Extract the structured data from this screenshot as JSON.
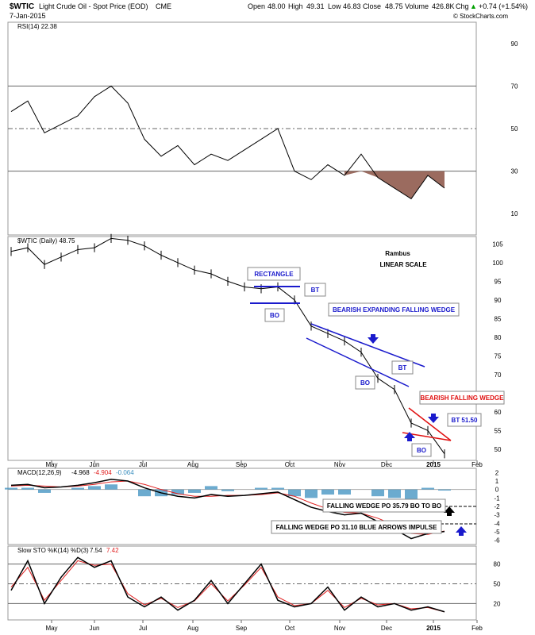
{
  "header": {
    "symbol": "$WTIC",
    "name": "Light Crude Oil - Spot Price (EOD)",
    "exchange": "CME",
    "date": "7-Jan-2015",
    "open_label": "Open",
    "open": "48.00",
    "high_label": "High",
    "high": "49.31",
    "low_label": "Low",
    "low": "46.83",
    "close_label": "Close",
    "close": "48.75",
    "volume_label": "Volume",
    "volume": "426.8K",
    "chg_label": "Chg",
    "chg": "+0.74 (+1.54%)",
    "watermark": "© StockCharts.com",
    "up_arrow_color": "#00a000"
  },
  "rsi_panel": {
    "legend": "RSI(14) 22.38",
    "y_ticks": [
      "90",
      "70",
      "50",
      "30",
      "10"
    ],
    "fill_color": "#9b6b5f"
  },
  "price_panel": {
    "legend": "$WTIC (Daily) 48.75",
    "note_author": "Rambus",
    "note_scale": "LINEAR SCALE",
    "y_ticks": [
      "105",
      "100",
      "95",
      "90",
      "85",
      "80",
      "75",
      "70",
      "65",
      "60",
      "55",
      "50"
    ],
    "x_ticks": [
      "May",
      "Jun",
      "Jul",
      "Aug",
      "Sep",
      "Oct",
      "Nov",
      "Dec",
      "2015",
      "Feb"
    ],
    "annotations": {
      "rectangle": "RECTANGLE",
      "bt1": "BT",
      "bo1": "BO",
      "expanding_wedge": "BEARISH EXPANDING FALLING WEDGE",
      "bt2": "BT",
      "bo2": "BO",
      "falling_wedge": "BEARISH FALLING WEDGE",
      "bt3": "BT 51.50",
      "bo3": "BO"
    },
    "blue_color": "#1a1acc",
    "red_color": "#e01010"
  },
  "macd_panel": {
    "legend_name": "MACD(12,26,9)",
    "legend_macd": "-4.968",
    "legend_signal": "-4.904",
    "legend_hist": "-0.064",
    "y_ticks": [
      "2",
      "1",
      "0",
      "-1",
      "-2",
      "-3",
      "-4",
      "-5",
      "-6"
    ],
    "box1": "FALLING WEDGE PO 35.79 BO TO BO",
    "box2": "FALLING WEDGE PO 31.10  BLUE ARROWS IMPULSE",
    "hist_color": "#3b8fbf",
    "signal_color": "#e02020"
  },
  "sto_panel": {
    "legend_name": "Slow STO %K(14) %D(3)",
    "legend_k": "7.54",
    "legend_d": "7.42",
    "y_ticks": [
      "80",
      "50",
      "20"
    ],
    "x_ticks": [
      "May",
      "Jun",
      "Jul",
      "Aug",
      "Sep",
      "Oct",
      "Nov",
      "Dec",
      "2015",
      "Feb"
    ]
  },
  "chart_data": [
    {
      "type": "line",
      "title": "RSI(14)",
      "y_range": [
        0,
        100
      ],
      "reference_lines": [
        70,
        50,
        30
      ],
      "x": [
        "Apr-15",
        "Apr-25",
        "May-05",
        "May-15",
        "May-25",
        "Jun-05",
        "Jun-15",
        "Jun-25",
        "Jul-05",
        "Jul-15",
        "Jul-25",
        "Aug-05",
        "Aug-15",
        "Aug-25",
        "Sep-05",
        "Sep-15",
        "Sep-25",
        "Oct-05",
        "Oct-15",
        "Oct-25",
        "Nov-05",
        "Nov-15",
        "Nov-25",
        "Dec-05",
        "Dec-15",
        "Dec-25",
        "Jan-07"
      ],
      "values": [
        58,
        63,
        48,
        52,
        56,
        65,
        70,
        62,
        45,
        37,
        42,
        33,
        38,
        35,
        40,
        45,
        50,
        30,
        26,
        33,
        28,
        38,
        27,
        22,
        17,
        28,
        22
      ]
    },
    {
      "type": "line",
      "title": "$WTIC (Daily)",
      "y_range": [
        47,
        107
      ],
      "x": [
        "Apr-15",
        "Apr-25",
        "May-05",
        "May-15",
        "May-25",
        "Jun-05",
        "Jun-15",
        "Jun-25",
        "Jul-05",
        "Jul-15",
        "Jul-25",
        "Aug-05",
        "Aug-15",
        "Aug-25",
        "Sep-05",
        "Sep-15",
        "Sep-25",
        "Oct-05",
        "Oct-15",
        "Oct-25",
        "Nov-05",
        "Nov-15",
        "Nov-25",
        "Dec-05",
        "Dec-15",
        "Dec-25",
        "Jan-07"
      ],
      "values": [
        103,
        104,
        99.5,
        101.5,
        103.5,
        104,
        106.5,
        106,
        104.5,
        102,
        100,
        98,
        97,
        95,
        93.5,
        93,
        93.5,
        90,
        83,
        81,
        79,
        76,
        69,
        66,
        57,
        55,
        48.75
      ]
    },
    {
      "type": "line",
      "title": "MACD(12,26,9)",
      "y_range": [
        -6.5,
        2.5
      ],
      "series": [
        {
          "name": "MACD",
          "values": [
            0.5,
            0.6,
            0.2,
            0.3,
            0.5,
            0.8,
            1.2,
            1.0,
            0.2,
            -0.4,
            -0.8,
            -1.0,
            -0.6,
            -0.8,
            -0.7,
            -0.5,
            -0.3,
            -1.2,
            -2.1,
            -2.6,
            -3.0,
            -2.8,
            -3.8,
            -4.7,
            -5.8,
            -5.2,
            -4.968
          ]
        },
        {
          "name": "Signal",
          "values": [
            0.4,
            0.5,
            0.4,
            0.3,
            0.4,
            0.6,
            0.9,
            1.0,
            0.6,
            0.0,
            -0.5,
            -0.8,
            -0.8,
            -0.7,
            -0.7,
            -0.6,
            -0.4,
            -0.8,
            -1.6,
            -2.3,
            -2.7,
            -2.8,
            -3.4,
            -4.2,
            -5.2,
            -5.3,
            -4.904
          ]
        }
      ]
    },
    {
      "type": "line",
      "title": "Slow STO %K(14) %D(3)",
      "y_range": [
        0,
        100
      ],
      "reference_lines": [
        80,
        50,
        20
      ],
      "series": [
        {
          "name": "%K",
          "values": [
            40,
            85,
            20,
            60,
            90,
            75,
            85,
            30,
            15,
            30,
            10,
            25,
            55,
            20,
            50,
            80,
            25,
            15,
            20,
            45,
            10,
            30,
            15,
            20,
            10,
            15,
            7.54
          ]
        },
        {
          "name": "%D",
          "values": [
            45,
            75,
            25,
            55,
            85,
            78,
            80,
            35,
            18,
            28,
            14,
            24,
            50,
            24,
            48,
            75,
            30,
            17,
            20,
            40,
            14,
            28,
            18,
            20,
            12,
            14,
            7.42
          ]
        }
      ]
    }
  ]
}
